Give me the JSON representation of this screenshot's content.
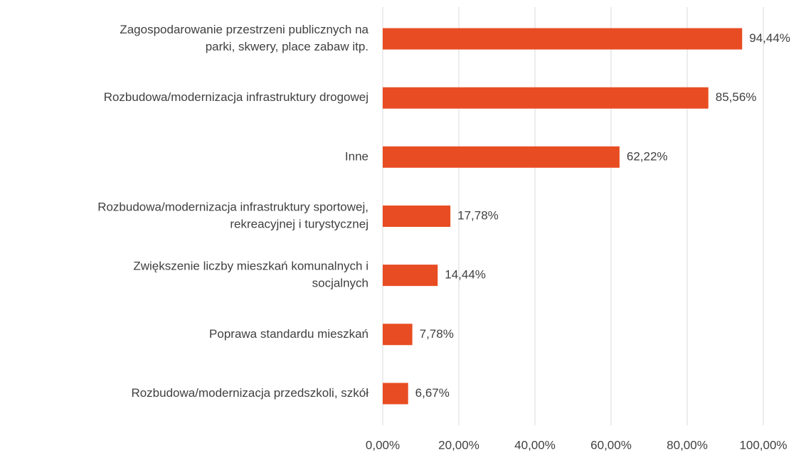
{
  "chart_data": {
    "type": "bar",
    "orientation": "horizontal",
    "categories": [
      [
        "Zagospodarowanie przestrzeni publicznych na",
        "parki, skwery, place zabaw itp."
      ],
      [
        "Rozbudowa/modernizacja infrastruktury drogowej"
      ],
      [
        "Inne"
      ],
      [
        "Rozbudowa/modernizacja infrastruktury sportowej,",
        "rekreacyjnej i turystycznej"
      ],
      [
        "Zwiększenie liczby mieszkań komunalnych i",
        "socjalnych"
      ],
      [
        "Poprawa standardu mieszkań"
      ],
      [
        "Rozbudowa/modernizacja przedszkoli, szkół"
      ]
    ],
    "values": [
      94.44,
      85.56,
      62.22,
      17.78,
      14.44,
      7.78,
      6.67
    ],
    "value_labels": [
      "94,44%",
      "85,56%",
      "62,22%",
      "17,78%",
      "14,44%",
      "7,78%",
      "6,67%"
    ],
    "color": "#e84c22",
    "xlim": [
      0,
      100
    ],
    "xticks": [
      {
        "value": 0,
        "label": "0,00%"
      },
      {
        "value": 20,
        "label": "20,00%"
      },
      {
        "value": 40,
        "label": "40,00%"
      },
      {
        "value": 60,
        "label": "60,00%"
      },
      {
        "value": 80,
        "label": "80,00%"
      },
      {
        "value": 100,
        "label": "100,00%"
      }
    ],
    "grid": true
  }
}
